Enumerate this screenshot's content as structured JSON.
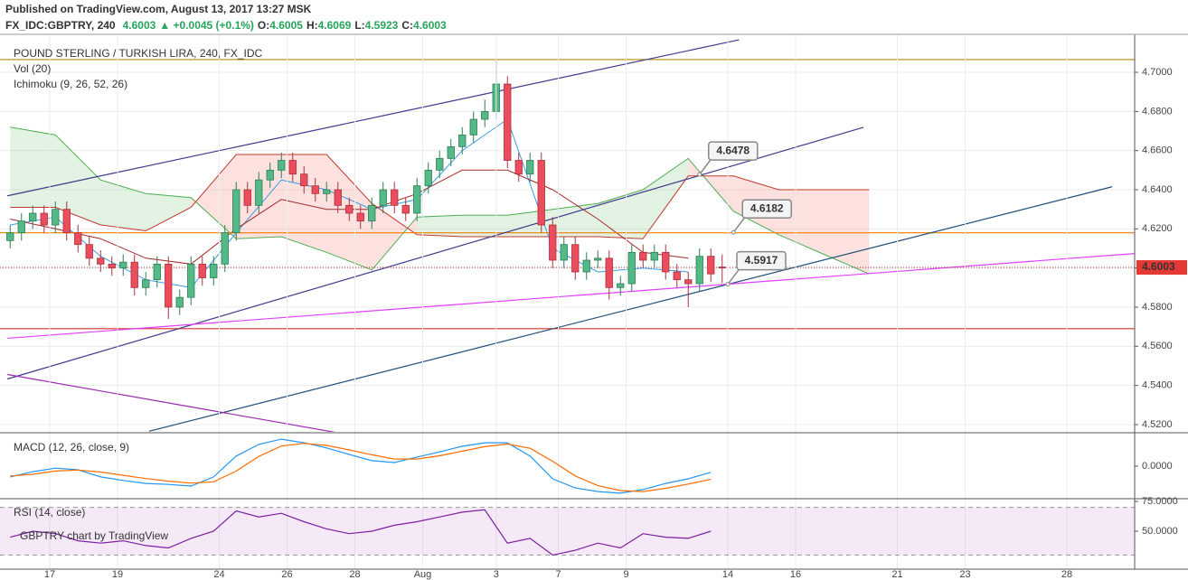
{
  "header": {
    "published": "Published on TradingView.com, August 13, 2017 13:27 MSK",
    "symbol": "FX_IDC:GBPTRY, 240",
    "last": "4.6003",
    "change": "▲ +0.0045 (+0.1%)",
    "ohlc": [
      {
        "label": "O:",
        "value": "4.6005"
      },
      {
        "label": "H:",
        "value": "4.6069"
      },
      {
        "label": "L:",
        "value": "4.5923"
      },
      {
        "label": "C:",
        "value": "4.6003"
      }
    ]
  },
  "chart_data": [
    {
      "type": "candlestick",
      "title": "POUND STERLING / TURKISH LIRA, 240, FX_IDC",
      "indicators": [
        "Vol (20)",
        "Ichimoku (9, 26, 52, 26)"
      ],
      "up_color": "#53b987",
      "down_color": "#eb4d5c",
      "x": [
        -7,
        -5,
        -3,
        -1,
        1,
        3,
        5,
        7,
        9,
        11,
        13,
        15,
        17,
        19,
        21,
        23,
        25,
        27,
        29,
        31,
        33,
        35,
        37,
        39,
        41,
        43,
        45,
        47,
        49,
        51,
        53,
        55,
        57,
        59,
        61,
        63,
        65,
        67,
        69,
        71,
        73,
        75,
        77,
        79,
        81,
        83,
        85,
        87,
        89,
        91,
        93,
        95,
        97,
        99,
        101,
        103,
        105,
        107,
        109,
        111,
        113,
        115,
        117,
        119
      ],
      "open": [
        4.614,
        4.618,
        4.624,
        4.628,
        4.622,
        4.63,
        4.618,
        4.612,
        4.605,
        4.602,
        4.6,
        4.603,
        4.59,
        4.594,
        4.602,
        4.58,
        4.585,
        4.602,
        4.595,
        4.602,
        4.618,
        4.64,
        4.632,
        4.645,
        4.65,
        4.655,
        4.648,
        4.642,
        4.638,
        4.64,
        4.632,
        4.628,
        4.624,
        4.632,
        4.64,
        4.632,
        4.628,
        4.642,
        4.65,
        4.656,
        4.662,
        4.668,
        4.676,
        4.68,
        4.694,
        4.655,
        4.648,
        4.655,
        4.622,
        4.604,
        4.612,
        4.598,
        4.604,
        4.605,
        4.59,
        4.592,
        4.608,
        4.604,
        4.608,
        4.598,
        4.594,
        4.592,
        4.606,
        4.6005
      ],
      "high": [
        4.622,
        4.628,
        4.632,
        4.632,
        4.634,
        4.634,
        4.622,
        4.616,
        4.609,
        4.606,
        4.607,
        4.607,
        4.598,
        4.606,
        4.606,
        4.589,
        4.606,
        4.606,
        4.606,
        4.622,
        4.644,
        4.644,
        4.649,
        4.654,
        4.659,
        4.659,
        4.652,
        4.646,
        4.644,
        4.644,
        4.636,
        4.632,
        4.636,
        4.644,
        4.644,
        4.636,
        4.646,
        4.654,
        4.66,
        4.666,
        4.672,
        4.68,
        4.686,
        4.706,
        4.698,
        4.659,
        4.659,
        4.659,
        4.626,
        4.616,
        4.616,
        4.608,
        4.609,
        4.609,
        4.596,
        4.612,
        4.612,
        4.612,
        4.612,
        4.602,
        4.598,
        4.61,
        4.61,
        4.6069
      ],
      "low": [
        4.61,
        4.614,
        4.62,
        4.618,
        4.618,
        4.614,
        4.608,
        4.601,
        4.598,
        4.596,
        4.596,
        4.586,
        4.586,
        4.59,
        4.574,
        4.576,
        4.581,
        4.591,
        4.591,
        4.598,
        4.614,
        4.628,
        4.628,
        4.641,
        4.646,
        4.644,
        4.638,
        4.634,
        4.634,
        4.628,
        4.624,
        4.62,
        4.62,
        4.628,
        4.628,
        4.624,
        4.624,
        4.638,
        4.646,
        4.652,
        4.658,
        4.664,
        4.672,
        4.676,
        4.651,
        4.644,
        4.644,
        4.618,
        4.6,
        4.6,
        4.594,
        4.594,
        4.6,
        4.584,
        4.586,
        4.588,
        4.6,
        4.6,
        4.594,
        4.59,
        4.58,
        4.588,
        4.593,
        4.5923
      ],
      "close": [
        4.618,
        4.624,
        4.628,
        4.622,
        4.63,
        4.618,
        4.612,
        4.605,
        4.602,
        4.6,
        4.603,
        4.59,
        4.594,
        4.602,
        4.58,
        4.585,
        4.602,
        4.595,
        4.602,
        4.618,
        4.64,
        4.632,
        4.645,
        4.65,
        4.655,
        4.648,
        4.642,
        4.638,
        4.64,
        4.632,
        4.628,
        4.624,
        4.632,
        4.64,
        4.632,
        4.628,
        4.642,
        4.65,
        4.656,
        4.662,
        4.668,
        4.676,
        4.68,
        4.694,
        4.655,
        4.648,
        4.655,
        4.622,
        4.604,
        4.612,
        4.598,
        4.604,
        4.605,
        4.59,
        4.592,
        4.608,
        4.604,
        4.608,
        4.598,
        4.594,
        4.592,
        4.606,
        4.597,
        4.6003
      ],
      "xlim": [
        -8.8,
        192
      ],
      "xticks": [
        {
          "value": 0,
          "label": "17"
        },
        {
          "value": 12,
          "label": "19"
        },
        {
          "value": 30,
          "label": "24"
        },
        {
          "value": 42,
          "label": "26"
        },
        {
          "value": 54,
          "label": "28"
        },
        {
          "value": 66,
          "label": "Aug"
        },
        {
          "value": 79,
          "label": "3"
        },
        {
          "value": 90,
          "label": "7"
        },
        {
          "value": 102,
          "label": "9"
        },
        {
          "value": 120,
          "label": "14"
        },
        {
          "value": 132,
          "label": "16"
        },
        {
          "value": 150,
          "label": "21"
        },
        {
          "value": 162,
          "label": "23"
        },
        {
          "value": 180,
          "label": "28"
        }
      ],
      "ylim": [
        4.5163,
        4.7194
      ],
      "yticks": [
        {
          "value": 4.52,
          "label": "4.5200"
        },
        {
          "value": 4.54,
          "label": "4.5400"
        },
        {
          "value": 4.56,
          "label": "4.5600"
        },
        {
          "value": 4.58,
          "label": "4.5800"
        },
        {
          "value": 4.6,
          "label": "4.6000"
        },
        {
          "value": 4.62,
          "label": "4.6200"
        },
        {
          "value": 4.64,
          "label": "4.6400"
        },
        {
          "value": 4.66,
          "label": "4.6600"
        },
        {
          "value": 4.68,
          "label": "4.6800"
        },
        {
          "value": 4.7,
          "label": "4.7000"
        }
      ],
      "grid": true,
      "ichimoku": {
        "x": [
          -7,
          1,
          9,
          17,
          25,
          33,
          41,
          49,
          57,
          65,
          73,
          81,
          89,
          97,
          105,
          113,
          121,
          129,
          137,
          145
        ],
        "span_a": [
          4.672,
          4.668,
          4.645,
          4.638,
          4.636,
          4.615,
          4.616,
          4.608,
          4.599,
          4.626,
          4.627,
          4.627,
          4.63,
          4.633,
          4.64,
          4.656,
          4.629,
          4.617,
          4.607,
          4.597
        ],
        "span_b": [
          4.631,
          4.631,
          4.622,
          4.619,
          4.631,
          4.658,
          4.658,
          4.658,
          4.633,
          4.617,
          4.616,
          4.616,
          4.616,
          4.616,
          4.615,
          4.647,
          4.647,
          4.64,
          4.64,
          4.64
        ],
        "span_a_color": "#4caf50",
        "span_b_color": "#c0392b",
        "line_x": [
          -7,
          1,
          9,
          17,
          25,
          33,
          41,
          49,
          57,
          65,
          73,
          81,
          89,
          97,
          105,
          113
        ],
        "conversion": [
          4.622,
          4.626,
          4.606,
          4.594,
          4.59,
          4.618,
          4.645,
          4.64,
          4.63,
          4.635,
          4.66,
          4.676,
          4.61,
          4.598,
          4.6,
          4.598
        ],
        "base": [
          4.625,
          4.62,
          4.615,
          4.605,
          4.602,
          4.62,
          4.635,
          4.63,
          4.63,
          4.638,
          4.65,
          4.65,
          4.64,
          4.625,
          4.608,
          4.605
        ],
        "conversion_color": "#3c9be6",
        "base_color": "#a52a2a"
      },
      "lines": [
        {
          "x": [
            -7.5,
            122
          ],
          "y": [
            4.6369,
            4.7166
          ],
          "color": "#3f3a8c"
        },
        {
          "x": [
            -7.5,
            144
          ],
          "y": [
            4.5433,
            4.6719
          ],
          "color": "#3f3a8c"
        },
        {
          "x": [
            17.6,
            188
          ],
          "y": [
            4.5166,
            4.6415
          ],
          "color": "#1f4e79"
        },
        {
          "x": [
            -7.5,
            192
          ],
          "y": [
            4.5641,
            4.6074
          ],
          "color": "#e040fb"
        },
        {
          "x": [
            -7.5,
            51.2
          ],
          "y": [
            4.5456,
            4.5157
          ],
          "color": "#9c27b0"
        }
      ],
      "hlines": [
        {
          "value": 4.7065,
          "color": "#b8860b"
        },
        {
          "value": 4.618,
          "color": "#f57c00"
        },
        {
          "value": 4.569,
          "color": "#d32f2f"
        }
      ],
      "annotations": [
        {
          "value": 4.6478,
          "x": 115
        },
        {
          "value": 4.6182,
          "x": 121
        },
        {
          "value": 4.5917,
          "x": 120
        }
      ],
      "last_color": "#e53935"
    },
    {
      "type": "line",
      "title": "MACD (12, 26, close, 9)",
      "x": [
        -7,
        -3,
        1,
        5,
        9,
        13,
        17,
        21,
        25,
        29,
        33,
        37,
        41,
        45,
        49,
        53,
        57,
        61,
        65,
        69,
        73,
        77,
        81,
        85,
        89,
        93,
        97,
        101,
        105,
        109,
        113,
        117
      ],
      "xlim": [
        -8.8,
        192
      ],
      "ylim": [
        -0.01,
        0.01
      ],
      "yticks": [
        {
          "value": 0,
          "label": "0.0000"
        }
      ],
      "series": [
        {
          "color": "#2196f3",
          "values": [
            -0.0033,
            -0.0017,
            -0.0006,
            -0.0011,
            -0.0033,
            -0.0044,
            -0.0053,
            -0.0056,
            -0.0061,
            -0.0033,
            0.0031,
            0.0067,
            0.0083,
            0.0072,
            0.0056,
            0.0036,
            0.0017,
            0.0011,
            0.0028,
            0.0044,
            0.0061,
            0.0072,
            0.0072,
            0.0031,
            -0.0039,
            -0.0067,
            -0.0078,
            -0.0083,
            -0.0072,
            -0.0053,
            -0.0039,
            -0.0019
          ]
        },
        {
          "color": "#ff6d00",
          "values": [
            -0.003,
            -0.0025,
            -0.0015,
            -0.0012,
            -0.0018,
            -0.0028,
            -0.0038,
            -0.0046,
            -0.0052,
            -0.0048,
            -0.0015,
            0.003,
            0.0062,
            0.007,
            0.0064,
            0.005,
            0.0035,
            0.0022,
            0.0022,
            0.0032,
            0.0046,
            0.006,
            0.0068,
            0.0055,
            0.0015,
            -0.003,
            -0.006,
            -0.0075,
            -0.0078,
            -0.0068,
            -0.0055,
            -0.004
          ]
        }
      ]
    },
    {
      "type": "line",
      "title": "RSI (14, close)",
      "watermark": "GBPTRY chart by TradingView",
      "x": [
        -7,
        -3,
        1,
        5,
        9,
        13,
        17,
        21,
        25,
        29,
        33,
        37,
        41,
        45,
        49,
        53,
        57,
        61,
        65,
        69,
        73,
        77,
        81,
        85,
        89,
        93,
        97,
        101,
        105,
        109,
        113,
        117
      ],
      "xlim": [
        -8.8,
        192
      ],
      "ylim": [
        18.2,
        77.3
      ],
      "yticks": [
        {
          "value": 75,
          "label": "75.0000"
        },
        {
          "value": 50,
          "label": "50.0000"
        }
      ],
      "band": [
        30,
        70
      ],
      "band_color": "#9c27b0",
      "series": [
        {
          "color": "#7b1fa2",
          "values": [
            45,
            50,
            48,
            42,
            40,
            42,
            38,
            36,
            44,
            50,
            67,
            62,
            65,
            58,
            52,
            48,
            50,
            55,
            58,
            62,
            66,
            68,
            40,
            44,
            30,
            34,
            40,
            36,
            48,
            45,
            44,
            50
          ]
        }
      ]
    }
  ]
}
